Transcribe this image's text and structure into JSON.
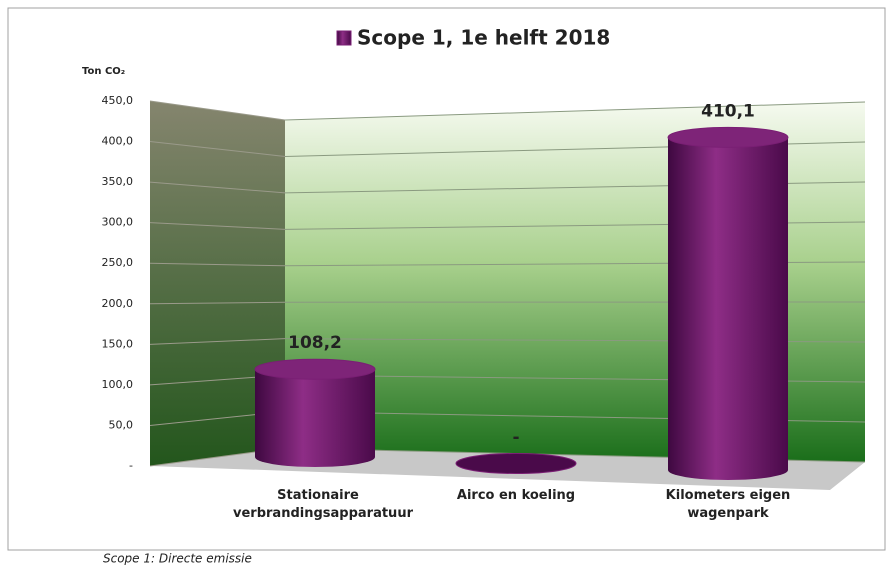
{
  "chart_data": {
    "type": "bar3d",
    "y_axis_label": "Ton CO₂",
    "caption": "Scope 1: Directe emissie",
    "categories": [
      "Stationaire verbrandingsapparatuur",
      "Airco en koeling",
      "Kilometers eigen wagenpark"
    ],
    "series": [
      {
        "name": "Scope 1, 1e helft 2018",
        "color": "#7a1f74",
        "values": [
          108.2,
          0,
          410.1
        ],
        "value_labels": [
          "108,2",
          "-",
          "410,1"
        ]
      }
    ],
    "ylim": [
      0,
      450
    ],
    "yticks": [
      {
        "value": 0,
        "label": "-"
      },
      {
        "value": 50,
        "label": "50,0"
      },
      {
        "value": 100,
        "label": "100,0"
      },
      {
        "value": 150,
        "label": "150,0"
      },
      {
        "value": 200,
        "label": "200,0"
      },
      {
        "value": 250,
        "label": "250,0"
      },
      {
        "value": 300,
        "label": "300,0"
      },
      {
        "value": 350,
        "label": "350,0"
      },
      {
        "value": 400,
        "label": "400,0"
      },
      {
        "value": 450,
        "label": "450,0"
      }
    ],
    "grid": true
  }
}
